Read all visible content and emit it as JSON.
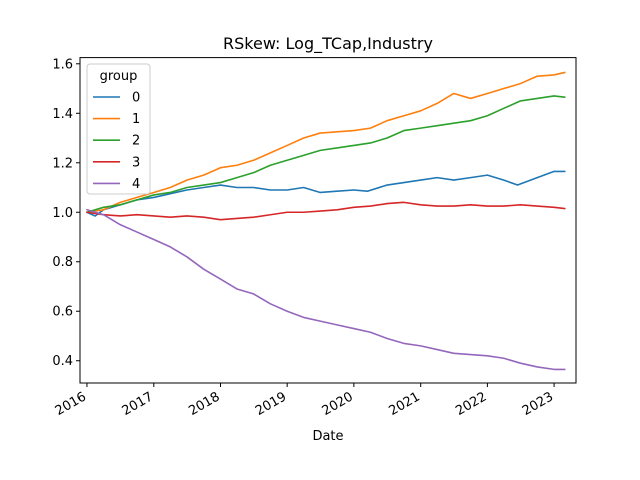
{
  "chart_data": {
    "type": "line",
    "title": "RSkew: Log_TCap,Industry",
    "xlabel": "Date",
    "ylabel": "",
    "xlim": [
      "2015-11-24",
      "2023-05-01"
    ],
    "ylim": [
      0.31,
      1.625
    ],
    "x_ticks": [
      "2016",
      "2017",
      "2018",
      "2019",
      "2020",
      "2021",
      "2022",
      "2023"
    ],
    "y_ticks": [
      "0.4",
      "0.6",
      "0.8",
      "1.0",
      "1.2",
      "1.4",
      "1.6"
    ],
    "grid": false,
    "legend": {
      "title": "group",
      "placement": "top-left"
    },
    "series": [
      {
        "name": "0",
        "color": "#1f77b4",
        "points": [
          [
            "2016-01-01",
            1.0
          ],
          [
            "2016-02-15",
            0.985
          ],
          [
            "2016-04-01",
            1.01
          ],
          [
            "2016-07-01",
            1.03
          ],
          [
            "2016-10-01",
            1.05
          ],
          [
            "2017-01-01",
            1.06
          ],
          [
            "2017-04-01",
            1.075
          ],
          [
            "2017-07-01",
            1.09
          ],
          [
            "2017-10-01",
            1.1
          ],
          [
            "2018-01-01",
            1.11
          ],
          [
            "2018-04-01",
            1.1
          ],
          [
            "2018-07-01",
            1.1
          ],
          [
            "2018-10-01",
            1.09
          ],
          [
            "2019-01-01",
            1.09
          ],
          [
            "2019-04-01",
            1.1
          ],
          [
            "2019-07-01",
            1.08
          ],
          [
            "2019-10-01",
            1.085
          ],
          [
            "2020-01-01",
            1.09
          ],
          [
            "2020-03-15",
            1.085
          ],
          [
            "2020-07-01",
            1.11
          ],
          [
            "2020-10-01",
            1.12
          ],
          [
            "2021-01-01",
            1.13
          ],
          [
            "2021-04-01",
            1.14
          ],
          [
            "2021-07-01",
            1.13
          ],
          [
            "2021-10-01",
            1.14
          ],
          [
            "2022-01-01",
            1.15
          ],
          [
            "2022-04-01",
            1.13
          ],
          [
            "2022-06-15",
            1.11
          ],
          [
            "2022-10-01",
            1.14
          ],
          [
            "2023-01-01",
            1.165
          ],
          [
            "2023-03-01",
            1.165
          ]
        ]
      },
      {
        "name": "1",
        "color": "#ff7f0e",
        "points": [
          [
            "2016-01-01",
            1.0
          ],
          [
            "2016-04-01",
            1.01
          ],
          [
            "2016-07-01",
            1.04
          ],
          [
            "2016-10-01",
            1.06
          ],
          [
            "2017-01-01",
            1.08
          ],
          [
            "2017-04-01",
            1.1
          ],
          [
            "2017-07-01",
            1.13
          ],
          [
            "2017-10-01",
            1.15
          ],
          [
            "2018-01-01",
            1.18
          ],
          [
            "2018-04-01",
            1.19
          ],
          [
            "2018-07-01",
            1.21
          ],
          [
            "2018-10-01",
            1.24
          ],
          [
            "2019-01-01",
            1.27
          ],
          [
            "2019-04-01",
            1.3
          ],
          [
            "2019-07-01",
            1.32
          ],
          [
            "2019-10-01",
            1.325
          ],
          [
            "2020-01-01",
            1.33
          ],
          [
            "2020-04-01",
            1.34
          ],
          [
            "2020-07-01",
            1.37
          ],
          [
            "2020-10-01",
            1.39
          ],
          [
            "2021-01-01",
            1.41
          ],
          [
            "2021-04-01",
            1.44
          ],
          [
            "2021-07-01",
            1.48
          ],
          [
            "2021-10-01",
            1.46
          ],
          [
            "2022-01-01",
            1.48
          ],
          [
            "2022-04-01",
            1.5
          ],
          [
            "2022-07-01",
            1.52
          ],
          [
            "2022-10-01",
            1.55
          ],
          [
            "2023-01-01",
            1.555
          ],
          [
            "2023-03-01",
            1.565
          ]
        ]
      },
      {
        "name": "2",
        "color": "#2ca02c",
        "points": [
          [
            "2016-01-01",
            1.0
          ],
          [
            "2016-04-01",
            1.02
          ],
          [
            "2016-07-01",
            1.03
          ],
          [
            "2016-10-01",
            1.05
          ],
          [
            "2017-01-01",
            1.07
          ],
          [
            "2017-04-01",
            1.08
          ],
          [
            "2017-07-01",
            1.1
          ],
          [
            "2017-10-01",
            1.11
          ],
          [
            "2018-01-01",
            1.12
          ],
          [
            "2018-04-01",
            1.14
          ],
          [
            "2018-07-01",
            1.16
          ],
          [
            "2018-10-01",
            1.19
          ],
          [
            "2019-01-01",
            1.21
          ],
          [
            "2019-04-01",
            1.23
          ],
          [
            "2019-07-01",
            1.25
          ],
          [
            "2019-10-01",
            1.26
          ],
          [
            "2020-01-01",
            1.27
          ],
          [
            "2020-04-01",
            1.28
          ],
          [
            "2020-07-01",
            1.3
          ],
          [
            "2020-10-01",
            1.33
          ],
          [
            "2021-01-01",
            1.34
          ],
          [
            "2021-04-01",
            1.35
          ],
          [
            "2021-07-01",
            1.36
          ],
          [
            "2021-10-01",
            1.37
          ],
          [
            "2022-01-01",
            1.39
          ],
          [
            "2022-04-01",
            1.42
          ],
          [
            "2022-07-01",
            1.45
          ],
          [
            "2022-10-01",
            1.46
          ],
          [
            "2023-01-01",
            1.47
          ],
          [
            "2023-03-01",
            1.465
          ]
        ]
      },
      {
        "name": "3",
        "color": "#d62728",
        "points": [
          [
            "2016-01-01",
            1.0
          ],
          [
            "2016-04-01",
            0.99
          ],
          [
            "2016-07-01",
            0.985
          ],
          [
            "2016-10-01",
            0.99
          ],
          [
            "2017-01-01",
            0.985
          ],
          [
            "2017-04-01",
            0.98
          ],
          [
            "2017-07-01",
            0.985
          ],
          [
            "2017-10-01",
            0.98
          ],
          [
            "2018-01-01",
            0.97
          ],
          [
            "2018-04-01",
            0.975
          ],
          [
            "2018-07-01",
            0.98
          ],
          [
            "2018-10-01",
            0.99
          ],
          [
            "2019-01-01",
            1.0
          ],
          [
            "2019-04-01",
            1.0
          ],
          [
            "2019-07-01",
            1.005
          ],
          [
            "2019-10-01",
            1.01
          ],
          [
            "2020-01-01",
            1.02
          ],
          [
            "2020-04-01",
            1.025
          ],
          [
            "2020-07-01",
            1.035
          ],
          [
            "2020-10-01",
            1.04
          ],
          [
            "2021-01-01",
            1.03
          ],
          [
            "2021-04-01",
            1.025
          ],
          [
            "2021-07-01",
            1.025
          ],
          [
            "2021-10-01",
            1.03
          ],
          [
            "2022-01-01",
            1.025
          ],
          [
            "2022-04-01",
            1.025
          ],
          [
            "2022-07-01",
            1.03
          ],
          [
            "2022-10-01",
            1.025
          ],
          [
            "2023-01-01",
            1.02
          ],
          [
            "2023-03-01",
            1.015
          ]
        ]
      },
      {
        "name": "4",
        "color": "#9467bd",
        "points": [
          [
            "2016-01-01",
            1.01
          ],
          [
            "2016-04-01",
            0.99
          ],
          [
            "2016-07-01",
            0.95
          ],
          [
            "2016-10-01",
            0.92
          ],
          [
            "2017-01-01",
            0.89
          ],
          [
            "2017-04-01",
            0.86
          ],
          [
            "2017-07-01",
            0.82
          ],
          [
            "2017-10-01",
            0.77
          ],
          [
            "2018-01-01",
            0.73
          ],
          [
            "2018-04-01",
            0.69
          ],
          [
            "2018-07-01",
            0.67
          ],
          [
            "2018-10-01",
            0.63
          ],
          [
            "2019-01-01",
            0.6
          ],
          [
            "2019-04-01",
            0.575
          ],
          [
            "2019-07-01",
            0.56
          ],
          [
            "2019-10-01",
            0.545
          ],
          [
            "2020-01-01",
            0.53
          ],
          [
            "2020-04-01",
            0.515
          ],
          [
            "2020-07-01",
            0.49
          ],
          [
            "2020-10-01",
            0.47
          ],
          [
            "2021-01-01",
            0.46
          ],
          [
            "2021-04-01",
            0.445
          ],
          [
            "2021-07-01",
            0.43
          ],
          [
            "2021-10-01",
            0.425
          ],
          [
            "2022-01-01",
            0.42
          ],
          [
            "2022-04-01",
            0.41
          ],
          [
            "2022-07-01",
            0.39
          ],
          [
            "2022-10-01",
            0.375
          ],
          [
            "2023-01-01",
            0.365
          ],
          [
            "2023-03-01",
            0.365
          ]
        ]
      }
    ]
  }
}
